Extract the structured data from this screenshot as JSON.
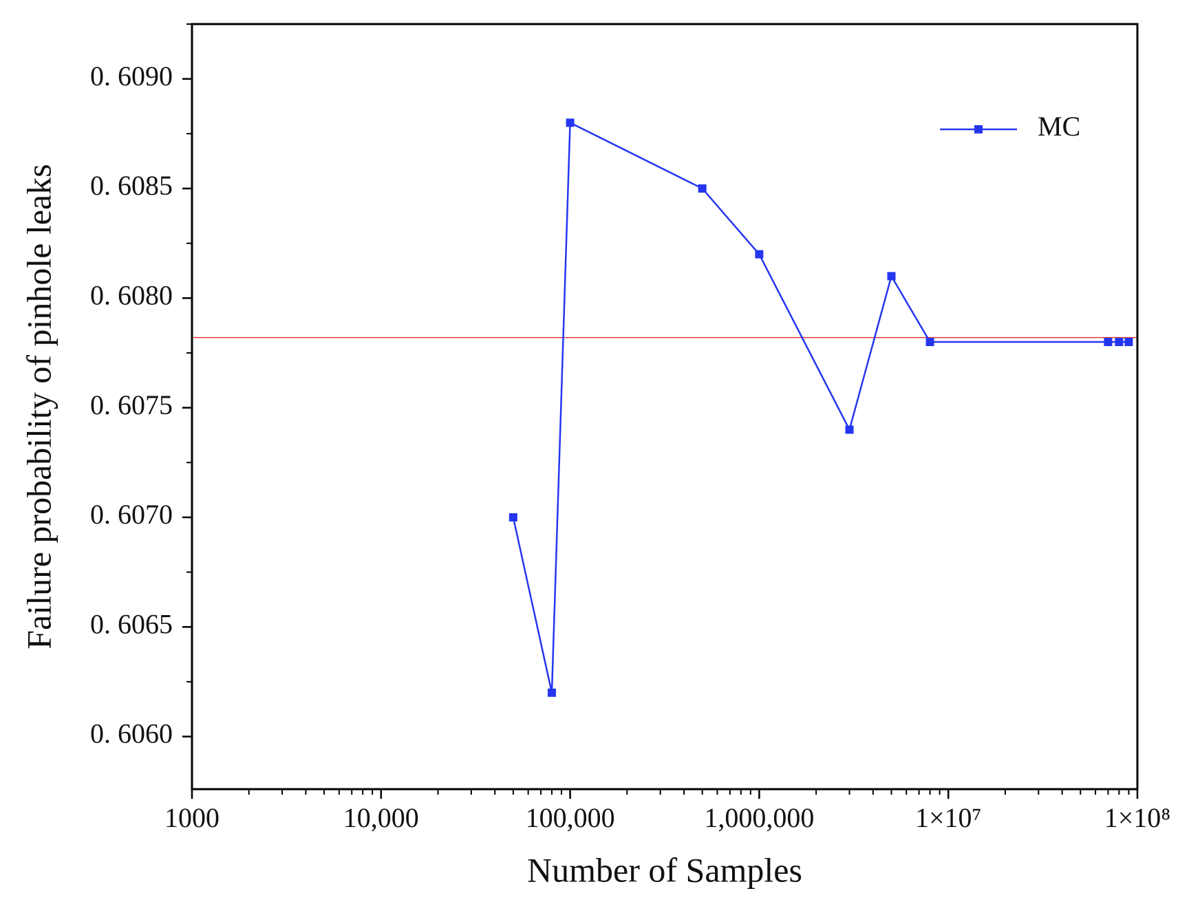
{
  "chart_data": {
    "type": "line",
    "x_label": "Number of Samples",
    "y_label": "Failure probability of pinhole leaks",
    "x_scale": "log",
    "x": [
      50000,
      80000,
      100000,
      500000,
      1000000,
      3000000,
      5000000,
      8000000,
      70000000,
      80000000,
      90000000
    ],
    "series": [
      {
        "name": "MC",
        "color": "#2436f0",
        "values": [
          0.607,
          0.6062,
          0.6088,
          0.6085,
          0.6082,
          0.6074,
          0.6081,
          0.6078,
          0.6078,
          0.6078,
          0.6078
        ]
      }
    ],
    "reference_line": {
      "value": 0.60782,
      "color": "#e03a3a"
    },
    "xlim": [
      1000,
      100000000
    ],
    "ylim": [
      0.60576,
      0.60925
    ],
    "xticks": [
      1000,
      {
        "value": 10000,
        "label": "10,000"
      },
      {
        "value": 100000,
        "label": "100,000"
      },
      {
        "value": 1000000,
        "label": "1,000,000"
      },
      {
        "value": 10000000,
        "label": "1×10⁷"
      },
      {
        "value": 100000000,
        "label": "1×10⁸"
      }
    ],
    "xminor_ticks": [
      2000,
      3000,
      4000,
      5000,
      6000,
      7000,
      8000,
      9000,
      20000,
      30000,
      40000,
      50000,
      60000,
      70000,
      80000,
      90000,
      200000,
      300000,
      400000,
      500000,
      600000,
      700000,
      800000,
      900000,
      2000000,
      3000000,
      4000000,
      5000000,
      6000000,
      7000000,
      8000000,
      9000000,
      20000000,
      30000000,
      40000000,
      50000000,
      60000000,
      70000000,
      80000000,
      90000000
    ],
    "yticks": [
      {
        "value": 0.606,
        "label": "0. 6060"
      },
      {
        "value": 0.6065,
        "label": "0. 6065"
      },
      {
        "value": 0.607,
        "label": "0. 6070"
      },
      {
        "value": 0.6075,
        "label": "0. 6075"
      },
      {
        "value": 0.608,
        "label": "0. 6080"
      },
      {
        "value": 0.6085,
        "label": "0. 6085"
      },
      {
        "value": 0.609,
        "label": "0. 6090"
      }
    ],
    "yminor_ticks": [
      0.60575,
      0.60625,
      0.60675,
      0.60725,
      0.60775,
      0.60825,
      0.60875,
      0.60925
    ],
    "legend": "upper right",
    "grid": false
  }
}
